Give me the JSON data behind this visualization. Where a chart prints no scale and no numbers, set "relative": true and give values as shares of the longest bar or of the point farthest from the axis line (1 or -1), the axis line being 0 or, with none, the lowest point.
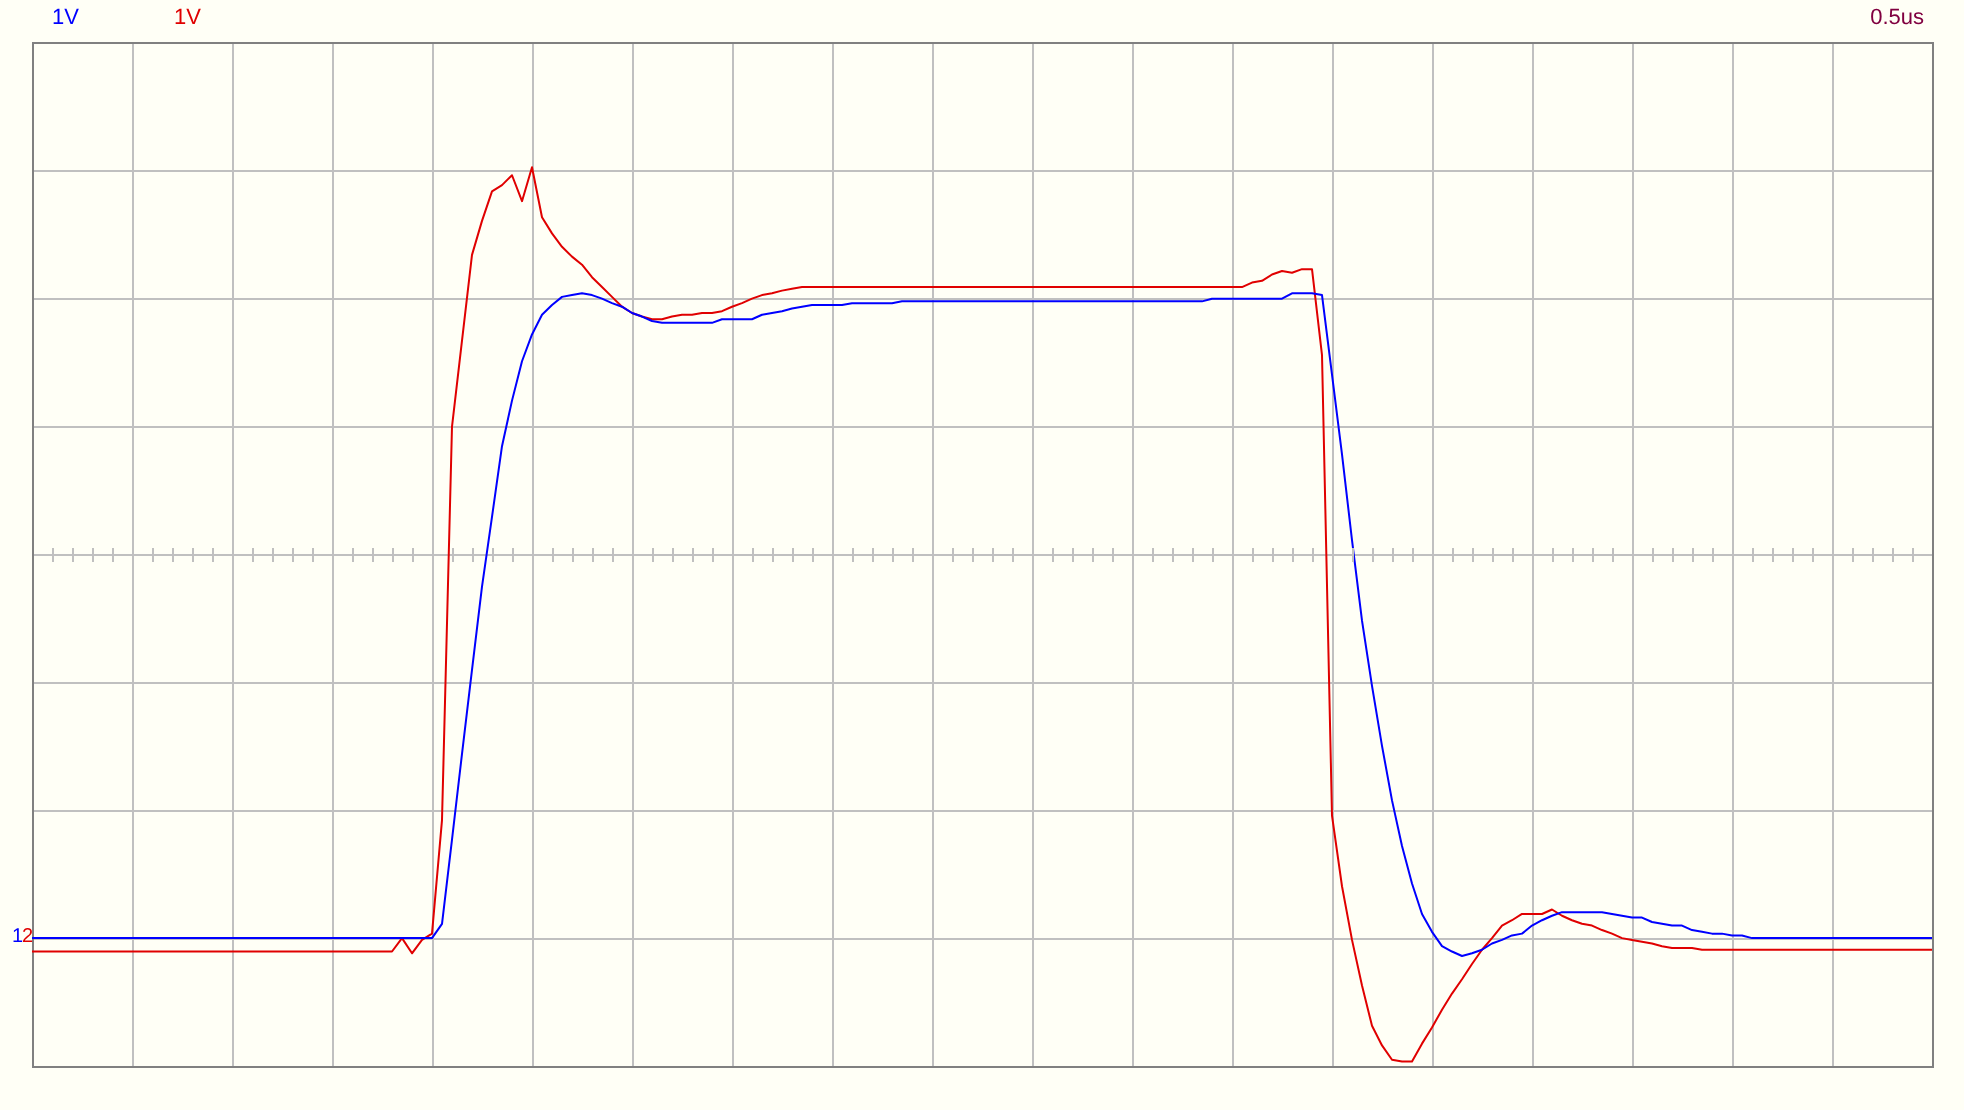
{
  "chart_data": {
    "type": "line",
    "relative": true,
    "grid": true,
    "legend": false,
    "marker": "none",
    "line_style": "solid",
    "annotations": [
      "1V",
      "1V",
      "0.5us"
    ],
    "categories": [
      null,
      null,
      null,
      null,
      null,
      null,
      null,
      null,
      null,
      null,
      null,
      null,
      null,
      null,
      null,
      null,
      null,
      null,
      null,
      null,
      null,
      null,
      null,
      null,
      null,
      null,
      null,
      null,
      null,
      null,
      null,
      null,
      null,
      null,
      null,
      null,
      null,
      null,
      null,
      null,
      null,
      null,
      null,
      null,
      null,
      null,
      null,
      null,
      null,
      null,
      null,
      null,
      null,
      null,
      null,
      null,
      null,
      null,
      null,
      null,
      null,
      null,
      null,
      null,
      null,
      null,
      null,
      null,
      null,
      null,
      null,
      null,
      null,
      null,
      null,
      null,
      null,
      null,
      null,
      null,
      null,
      null,
      null,
      null,
      null,
      null,
      null,
      null,
      null,
      null,
      null,
      null,
      null,
      null,
      null,
      null,
      null,
      null,
      null,
      null,
      null,
      null,
      null,
      null,
      null,
      null,
      null,
      null,
      null,
      null,
      null,
      null,
      null,
      null,
      null,
      null,
      null,
      null,
      null,
      null,
      null,
      null,
      null,
      null,
      null,
      null,
      null,
      null,
      null,
      null,
      null,
      null,
      null,
      null,
      null,
      null,
      null,
      null,
      null,
      null,
      null,
      null,
      null,
      null,
      null,
      null,
      null,
      null,
      null,
      null,
      null,
      null,
      null,
      null,
      null,
      null,
      null,
      null,
      null,
      null,
      null,
      null,
      null,
      null,
      null,
      null,
      null,
      null,
      null,
      null,
      null,
      null,
      null,
      null,
      null,
      null,
      null,
      null,
      null,
      null,
      null,
      null,
      null,
      null,
      null,
      null,
      null,
      null,
      null,
      null,
      null
    ],
    "series": [
      {
        "name": "1",
        "color": "#0000ff",
        "values": [
          0.138,
          0.138,
          0.138,
          0.138,
          0.138,
          0.138,
          0.138,
          0.138,
          0.138,
          0.138,
          0.138,
          0.138,
          0.138,
          0.138,
          0.138,
          0.138,
          0.138,
          0.138,
          0.138,
          0.138,
          0.138,
          0.138,
          0.138,
          0.138,
          0.138,
          0.138,
          0.138,
          0.138,
          0.138,
          0.138,
          0.138,
          0.138,
          0.138,
          0.138,
          0.138,
          0.138,
          0.138,
          0.138,
          0.138,
          0.138,
          0.138,
          0.154,
          0.248,
          0.344,
          0.438,
          0.531,
          0.609,
          0.688,
          0.739,
          0.783,
          0.813,
          0.835,
          0.846,
          0.855,
          0.857,
          0.859,
          0.857,
          0.853,
          0.848,
          0.844,
          0.837,
          0.833,
          0.828,
          0.826,
          0.826,
          0.826,
          0.826,
          0.826,
          0.826,
          0.83,
          0.83,
          0.83,
          0.83,
          0.835,
          0.837,
          0.839,
          0.842,
          0.844,
          0.846,
          0.846,
          0.846,
          0.846,
          0.848,
          0.848,
          0.848,
          0.848,
          0.848,
          0.85,
          0.85,
          0.85,
          0.85,
          0.85,
          0.85,
          0.85,
          0.85,
          0.85,
          0.85,
          0.85,
          0.85,
          0.85,
          0.85,
          0.85,
          0.85,
          0.85,
          0.85,
          0.85,
          0.85,
          0.85,
          0.85,
          0.85,
          0.85,
          0.85,
          0.85,
          0.85,
          0.85,
          0.85,
          0.85,
          0.85,
          0.853,
          0.853,
          0.853,
          0.853,
          0.853,
          0.853,
          0.853,
          0.853,
          0.859,
          0.859,
          0.859,
          0.857,
          0.768,
          0.679,
          0.583,
          0.493,
          0.42,
          0.353,
          0.292,
          0.241,
          0.199,
          0.165,
          0.145,
          0.129,
          0.123,
          0.118,
          0.121,
          0.125,
          0.132,
          0.136,
          0.141,
          0.143,
          0.152,
          0.158,
          0.163,
          0.167,
          0.167,
          0.167,
          0.167,
          0.167,
          0.165,
          0.163,
          0.161,
          0.161,
          0.156,
          0.154,
          0.152,
          0.152,
          0.147,
          0.145,
          0.143,
          0.143,
          0.141,
          0.141,
          0.138,
          0.138,
          0.138,
          0.138,
          0.138,
          0.138,
          0.138,
          0.138,
          0.138,
          0.138,
          0.138,
          0.138,
          0.138,
          0.138,
          0.138,
          0.138,
          0.138,
          0.138,
          0.138
        ]
      },
      {
        "name": "2",
        "color": "#e00000",
        "values": [
          0.123,
          0.123,
          0.123,
          0.123,
          0.123,
          0.123,
          0.123,
          0.123,
          0.123,
          0.123,
          0.123,
          0.123,
          0.123,
          0.123,
          0.123,
          0.123,
          0.123,
          0.123,
          0.123,
          0.123,
          0.123,
          0.123,
          0.123,
          0.123,
          0.123,
          0.123,
          0.123,
          0.123,
          0.123,
          0.123,
          0.123,
          0.123,
          0.123,
          0.123,
          0.123,
          0.123,
          0.123,
          0.138,
          0.121,
          0.136,
          0.143,
          0.27,
          0.71,
          0.806,
          0.902,
          0.94,
          0.973,
          0.98,
          0.991,
          0.962,
          1,
          0.944,
          0.926,
          0.911,
          0.9,
          0.891,
          0.877,
          0.866,
          0.855,
          0.844,
          0.837,
          0.833,
          0.83,
          0.83,
          0.833,
          0.835,
          0.835,
          0.837,
          0.837,
          0.839,
          0.844,
          0.848,
          0.853,
          0.857,
          0.859,
          0.862,
          0.864,
          0.866,
          0.866,
          0.866,
          0.866,
          0.866,
          0.866,
          0.866,
          0.866,
          0.866,
          0.866,
          0.866,
          0.866,
          0.866,
          0.866,
          0.866,
          0.866,
          0.866,
          0.866,
          0.866,
          0.866,
          0.866,
          0.866,
          0.866,
          0.866,
          0.866,
          0.866,
          0.866,
          0.866,
          0.866,
          0.866,
          0.866,
          0.866,
          0.866,
          0.866,
          0.866,
          0.866,
          0.866,
          0.866,
          0.866,
          0.866,
          0.866,
          0.866,
          0.866,
          0.866,
          0.866,
          0.871,
          0.873,
          0.88,
          0.884,
          0.882,
          0.886,
          0.886,
          0.79,
          0.275,
          0.196,
          0.136,
          0.085,
          0.04,
          0.018,
          0.002,
          0,
          0,
          0.02,
          0.038,
          0.058,
          0.076,
          0.092,
          0.109,
          0.125,
          0.138,
          0.152,
          0.158,
          0.165,
          0.165,
          0.165,
          0.17,
          0.163,
          0.158,
          0.154,
          0.152,
          0.147,
          0.143,
          0.138,
          0.136,
          0.134,
          0.132,
          0.129,
          0.127,
          0.127,
          0.127,
          0.125,
          0.125,
          0.125,
          0.125,
          0.125,
          0.125,
          0.125,
          0.125,
          0.125,
          0.125,
          0.125,
          0.125,
          0.125,
          0.125,
          0.125,
          0.125,
          0.125,
          0.125,
          0.125,
          0.125,
          0.125,
          0.125,
          0.125,
          0.125
        ]
      }
    ]
  }
}
